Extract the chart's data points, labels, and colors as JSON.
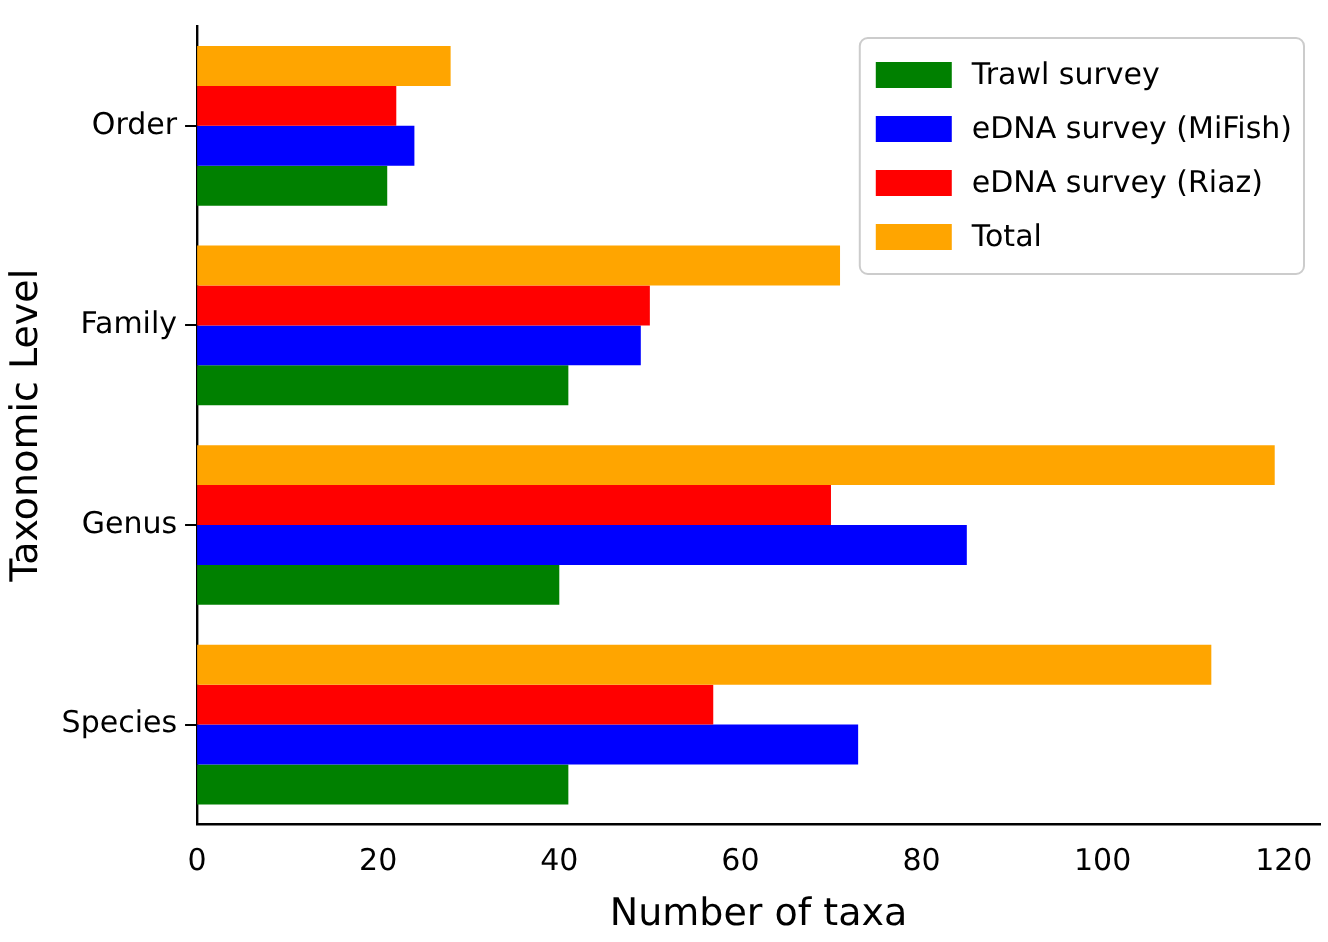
{
  "chart_data": {
    "type": "bar",
    "orientation": "horizontal",
    "xlabel": "Number of taxa",
    "ylabel": "Taxonomic Level",
    "categories": [
      "Order",
      "Family",
      "Genus",
      "Species"
    ],
    "series": [
      {
        "name": "Trawl survey",
        "color": "#008000",
        "values": [
          21,
          41,
          40,
          41
        ]
      },
      {
        "name": "eDNA survey (MiFish)",
        "color": "#0000ff",
        "values": [
          24,
          49,
          85,
          73
        ]
      },
      {
        "name": "eDNA survey (Riaz)",
        "color": "#ff0000",
        "values": [
          22,
          50,
          70,
          57
        ]
      },
      {
        "name": "Total",
        "color": "#ffa500",
        "values": [
          28,
          71,
          119,
          112
        ]
      }
    ],
    "xlim": [
      0,
      124
    ],
    "xticks": [
      0,
      20,
      40,
      60,
      80,
      100,
      120
    ],
    "grid": false,
    "legend": "top right"
  }
}
